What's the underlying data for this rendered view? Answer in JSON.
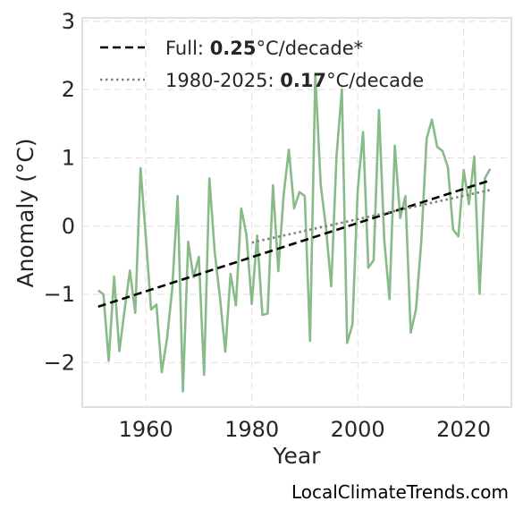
{
  "chart_data": {
    "type": "line",
    "title": "",
    "xlabel": "Year",
    "ylabel": "Anomaly (°C)",
    "xlim": [
      1948,
      2029
    ],
    "ylim": [
      -2.65,
      3.05
    ],
    "xticks": [
      1960,
      1980,
      2000,
      2020
    ],
    "yticks": [
      -2,
      -1,
      0,
      1,
      2,
      3
    ],
    "ytick_labels": [
      "−2",
      "−1",
      "0",
      "1",
      "2",
      "3"
    ],
    "grid": true,
    "legend_position": "top-left",
    "series": [
      {
        "kind": "data",
        "color": "#88bb88",
        "x": [
          1951,
          1952,
          1953,
          1954,
          1955,
          1956,
          1957,
          1958,
          1959,
          1960,
          1961,
          1962,
          1963,
          1964,
          1965,
          1966,
          1967,
          1968,
          1969,
          1970,
          1971,
          1972,
          1973,
          1974,
          1975,
          1976,
          1977,
          1978,
          1979,
          1980,
          1981,
          1982,
          1983,
          1984,
          1985,
          1986,
          1987,
          1988,
          1989,
          1990,
          1991,
          1992,
          1993,
          1994,
          1995,
          1996,
          1997,
          1998,
          1999,
          2000,
          2001,
          2002,
          2003,
          2004,
          2005,
          2006,
          2007,
          2008,
          2009,
          2010,
          2011,
          2012,
          2013,
          2014,
          2015,
          2016,
          2017,
          2018,
          2019,
          2020,
          2021,
          2022,
          2023,
          2024,
          2025
        ],
        "y": [
          -0.94,
          -1.0,
          -1.97,
          -0.74,
          -1.83,
          -1.23,
          -0.65,
          -1.27,
          0.85,
          -0.16,
          -1.22,
          -1.15,
          -2.14,
          -1.65,
          -0.91,
          0.44,
          -2.42,
          -0.23,
          -0.75,
          -0.45,
          -2.18,
          0.7,
          -0.37,
          -1.05,
          -1.84,
          -0.7,
          -1.16,
          0.26,
          -0.13,
          -1.14,
          -0.14,
          -1.3,
          -1.28,
          0.6,
          -0.66,
          0.45,
          1.12,
          0.26,
          0.5,
          0.44,
          -1.68,
          2.22,
          0.61,
          -0.02,
          -0.88,
          1.02,
          2.0,
          -1.71,
          -1.44,
          0.52,
          1.38,
          -0.61,
          -0.5,
          1.7,
          -0.2,
          -1.07,
          1.18,
          0.12,
          0.44,
          -1.56,
          -1.22,
          -0.21,
          1.28,
          1.56,
          1.16,
          1.1,
          0.87,
          -0.05,
          -0.15,
          0.82,
          0.32,
          1.02,
          -0.99,
          0.7,
          0.84
        ]
      },
      {
        "kind": "trend",
        "name": "Full",
        "rate": "0.25",
        "rate_suffix": "°C/decade*",
        "color": "#000000",
        "style": "dashed",
        "x": [
          1951,
          2025
        ],
        "y": [
          -1.18,
          0.67
        ]
      },
      {
        "kind": "trend",
        "name": "1980-2025",
        "rate": "0.17",
        "rate_suffix": "°C/decade",
        "color": "#808080",
        "style": "dotted",
        "x": [
          1980,
          2025
        ],
        "y": [
          -0.24,
          0.53
        ]
      }
    ]
  },
  "credit": "LocalClimateTrends.com"
}
